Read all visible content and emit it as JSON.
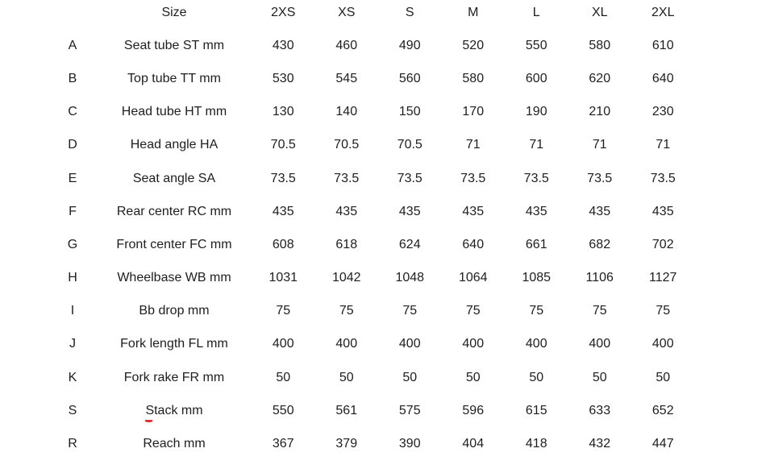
{
  "chart_data": {
    "type": "table",
    "columns": [
      "",
      "Size",
      "2XS",
      "XS",
      "S",
      "M",
      "L",
      "XL",
      "2XL"
    ],
    "rows": [
      [
        "A",
        "Seat tube ST mm",
        "430",
        "460",
        "490",
        "520",
        "550",
        "580",
        "610"
      ],
      [
        "B",
        "Top tube TT mm",
        "530",
        "545",
        "560",
        "580",
        "600",
        "620",
        "640"
      ],
      [
        "C",
        "Head tube HT mm",
        "130",
        "140",
        "150",
        "170",
        "190",
        "210",
        "230"
      ],
      [
        "D",
        "Head angle HA",
        "70.5",
        "70.5",
        "70.5",
        "71",
        "71",
        "71",
        "71"
      ],
      [
        "E",
        "Seat angle SA",
        "73.5",
        "73.5",
        "73.5",
        "73.5",
        "73.5",
        "73.5",
        "73.5"
      ],
      [
        "F",
        "Rear center RC mm",
        "435",
        "435",
        "435",
        "435",
        "435",
        "435",
        "435"
      ],
      [
        "G",
        "Front center FC mm",
        "608",
        "618",
        "624",
        "640",
        "661",
        "682",
        "702"
      ],
      [
        "H",
        "Wheelbase WB mm",
        "1031",
        "1042",
        "1048",
        "1064",
        "1085",
        "1106",
        "1127"
      ],
      [
        "I",
        "Bb drop mm",
        "75",
        "75",
        "75",
        "75",
        "75",
        "75",
        "75"
      ],
      [
        "J",
        "Fork length FL mm",
        "400",
        "400",
        "400",
        "400",
        "400",
        "400",
        "400"
      ],
      [
        "K",
        "Fork rake FR mm",
        "50",
        "50",
        "50",
        "50",
        "50",
        "50",
        "50"
      ],
      [
        "S",
        "Stack mm",
        "550",
        "561",
        "575",
        "596",
        "615",
        "633",
        "652"
      ],
      [
        "R",
        "Reach mm",
        "367",
        "379",
        "390",
        "404",
        "418",
        "432",
        "447"
      ]
    ]
  },
  "colors": {
    "text": "#1e1e1e",
    "background": "#ffffff",
    "spellcheck_underline": "#dd2f2f"
  }
}
